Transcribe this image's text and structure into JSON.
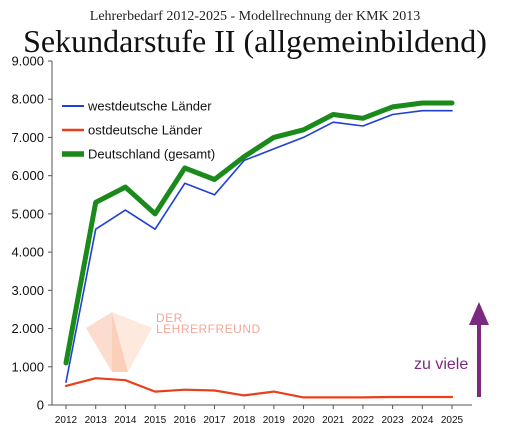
{
  "header": {
    "subtitle": "Lehrerbedarf 2012-2025 - Modellrechnung der KMK 2013",
    "title": "Sekundarstufe II (allgemeinbildend)"
  },
  "watermark": {
    "line1": "DER",
    "line2": "LEHRERFREUND"
  },
  "annotation": {
    "label": "zu viele",
    "color": "#7b2a7f"
  },
  "chart_data": {
    "type": "line",
    "title": "Sekundarstufe II (allgemeinbildend)",
    "subtitle": "Lehrerbedarf 2012-2025 - Modellrechnung der KMK 2013",
    "xlabel": "",
    "ylabel": "",
    "x": [
      "2012",
      "2013",
      "2014",
      "2015",
      "2016",
      "2017",
      "2018",
      "2019",
      "2020",
      "2021",
      "2022",
      "2023",
      "2024",
      "2025"
    ],
    "y_ticks": [
      "0",
      "1.000",
      "2.000",
      "3.000",
      "4.000",
      "5.000",
      "6.000",
      "7.000",
      "8.000",
      "9.000"
    ],
    "ylim": [
      0,
      9000
    ],
    "grid": false,
    "legend_position": "top-left",
    "series": [
      {
        "name": "westdeutsche Länder",
        "color": "#1f3fd6",
        "values": [
          600,
          4600,
          5100,
          4600,
          5800,
          5500,
          6400,
          6700,
          7000,
          7400,
          7300,
          7600,
          7700,
          7700
        ]
      },
      {
        "name": "ostdeutsche Länder",
        "color": "#e8411a",
        "values": [
          500,
          700,
          650,
          350,
          400,
          380,
          250,
          350,
          200,
          200,
          200,
          210,
          210,
          210
        ]
      },
      {
        "name": "Deutschland (gesamt)",
        "color": "#1a8a1a",
        "values": [
          1100,
          5300,
          5700,
          5000,
          6200,
          5900,
          6500,
          7000,
          7200,
          7600,
          7500,
          7800,
          7900,
          7900
        ]
      }
    ]
  }
}
